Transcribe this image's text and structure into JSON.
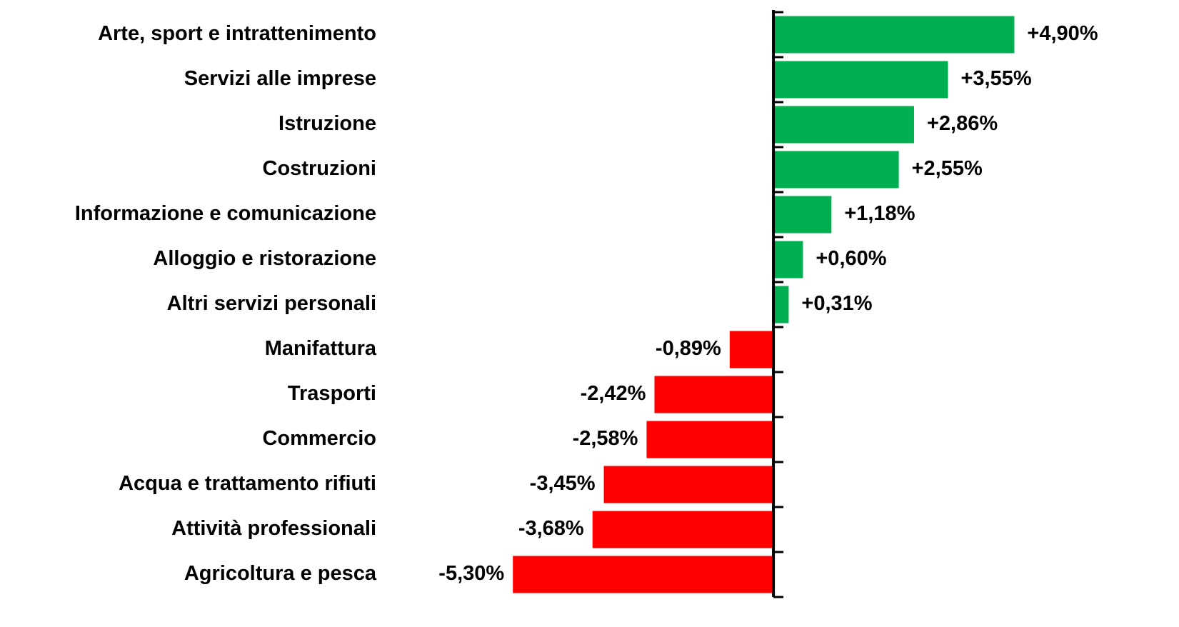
{
  "chart_data": {
    "type": "hbar",
    "categories": [
      "Arte, sport e intrattenimento",
      "Servizi alle imprese",
      "Istruzione",
      "Costruzioni",
      "Informazione e comunicazione",
      "Alloggio e ristorazione",
      "Altri servizi personali",
      "Manifattura",
      "Trasporti",
      "Commercio",
      "Acqua e trattamento rifiuti",
      "Attività professionali",
      "Agricoltura e pesca"
    ],
    "values": [
      4.9,
      3.55,
      2.86,
      2.55,
      1.18,
      0.6,
      0.31,
      -0.89,
      -2.42,
      -2.58,
      -3.45,
      -3.68,
      -5.3
    ],
    "value_labels": [
      "+4,90%",
      "+3,55%",
      "+2,86%",
      "+2,55%",
      "+1,18%",
      "+0,60%",
      "+0,31%",
      "-0,89%",
      "-2,42%",
      "-2,58%",
      "-3,45%",
      "-3,68%",
      "-5,30%"
    ],
    "positive_color": "#00b050",
    "negative_color": "#ff0000",
    "xlim": [
      -6,
      7
    ]
  }
}
